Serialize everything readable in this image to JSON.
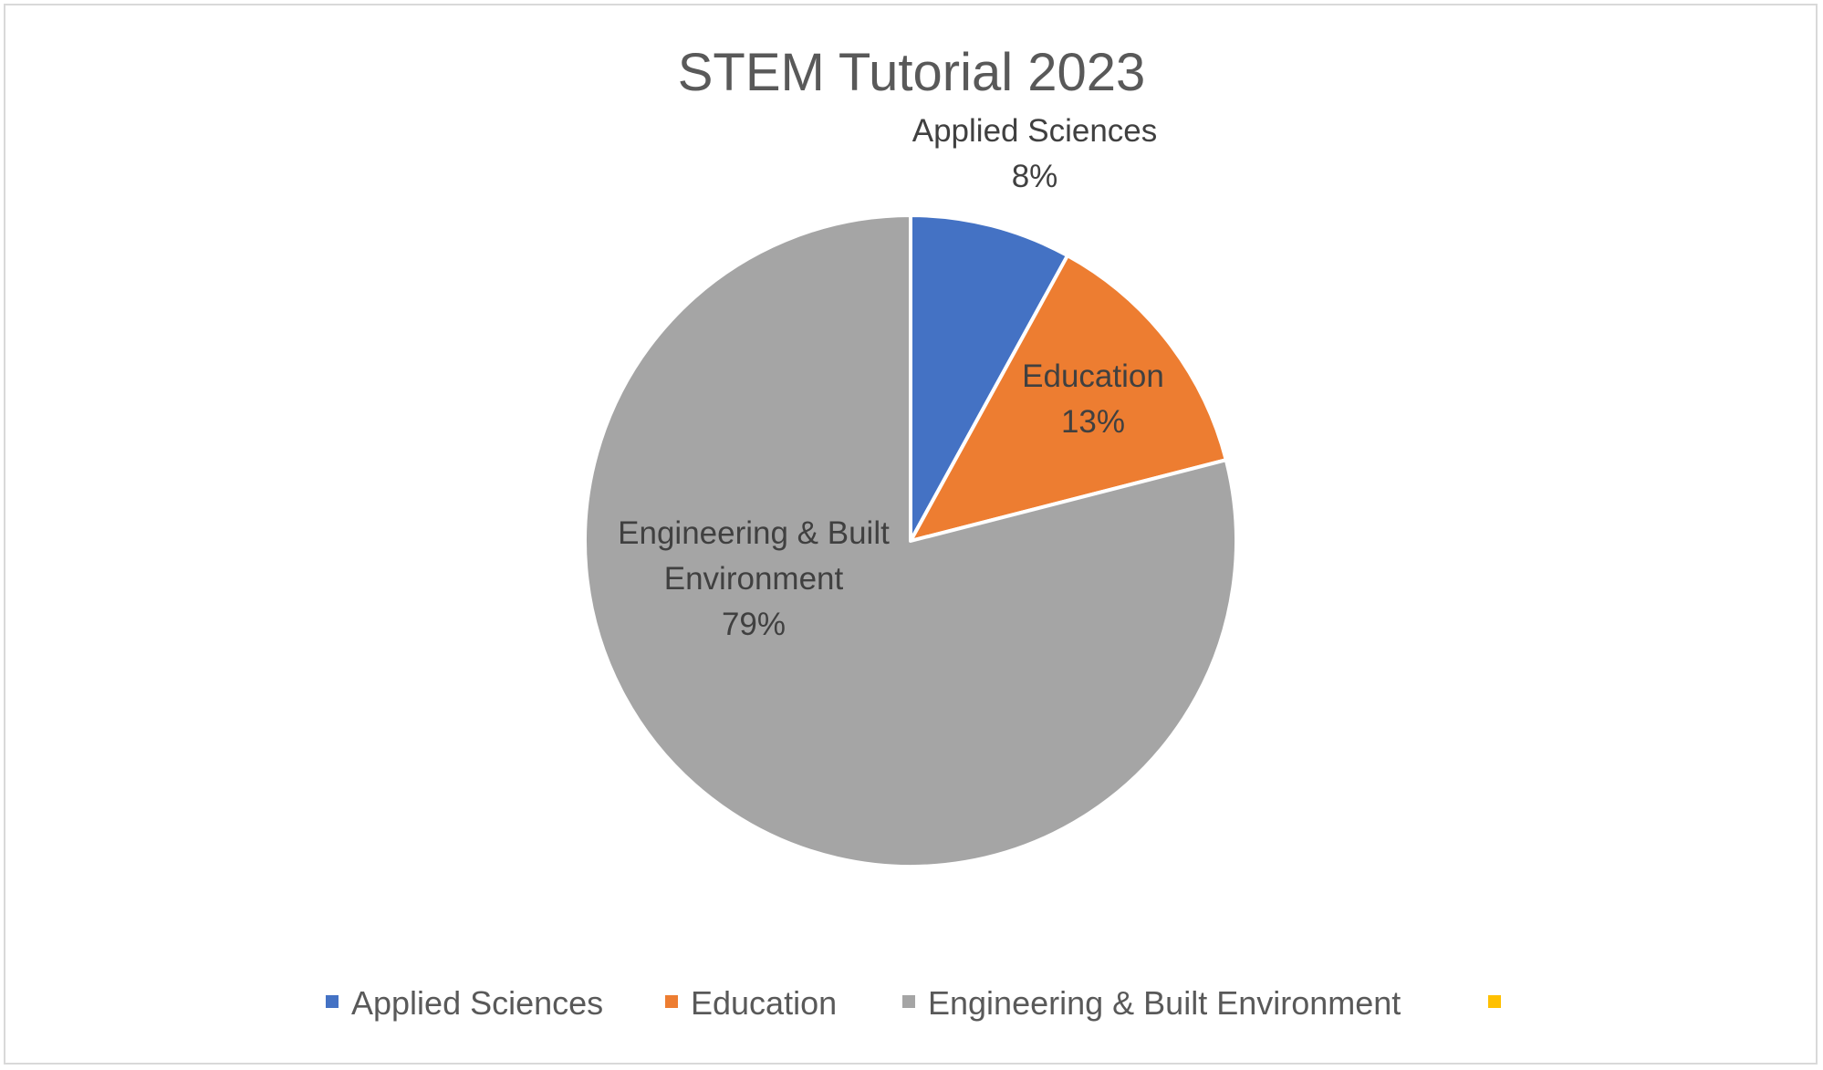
{
  "chart_data": {
    "type": "pie",
    "title": "STEM Tutorial 2023",
    "categories": [
      "Applied Sciences",
      "Education",
      "Engineering & Built Environment",
      ""
    ],
    "values": [
      8,
      13,
      79,
      0
    ],
    "value_unit": "%",
    "data_labels": [
      {
        "lines": [
          "Applied Sciences"
        ],
        "value": "8%"
      },
      {
        "lines": [
          "Education"
        ],
        "value": "13%"
      },
      {
        "lines": [
          "Engineering & Built",
          "Environment"
        ],
        "value": "79%"
      },
      {
        "lines": [],
        "value": ""
      }
    ],
    "colors": [
      "#4472C4",
      "#ED7D31",
      "#A5A5A5",
      "#FFC000"
    ],
    "legend_position": "bottom",
    "start_angle": "12 o'clock",
    "direction": "clockwise"
  }
}
